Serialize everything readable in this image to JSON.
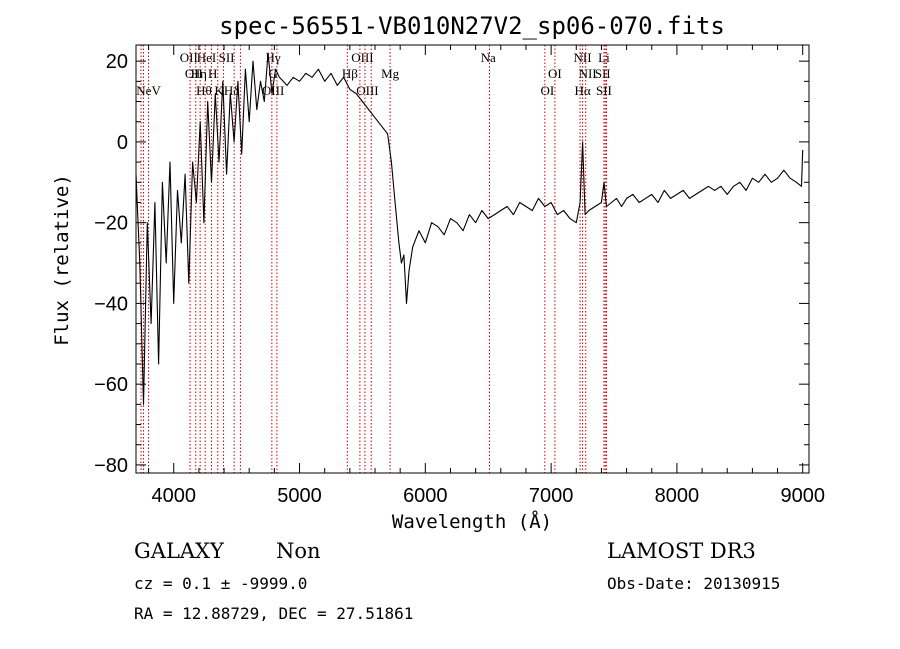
{
  "chart_data": {
    "type": "line",
    "title": "spec-56551-VB010N27V2_sp06-070.fits",
    "xlabel": "Wavelength (Å)",
    "ylabel": "Flux (relative)",
    "xlim": [
      3700,
      9050
    ],
    "ylim": [
      -82,
      24
    ],
    "xticks": [
      4000,
      5000,
      6000,
      7000,
      8000,
      9000
    ],
    "yticks": [
      -80,
      -60,
      -40,
      -20,
      0,
      20
    ],
    "grid": false,
    "line_color": "#000000",
    "marker_color": "#cc0000",
    "series": [
      {
        "x": [
          3700,
          3730,
          3760,
          3790,
          3820,
          3850,
          3880,
          3910,
          3940,
          3970,
          4000,
          4030,
          4060,
          4090,
          4120,
          4150,
          4180,
          4210,
          4240,
          4270,
          4300,
          4330,
          4360,
          4390,
          4420,
          4450,
          4480,
          4510,
          4540,
          4570,
          4600,
          4630,
          4660,
          4690,
          4720,
          4750,
          4780,
          4810,
          4840,
          4870,
          4900,
          4950,
          5000,
          5050,
          5100,
          5150,
          5200,
          5250,
          5300,
          5350,
          5400,
          5450,
          5500,
          5550,
          5600,
          5650,
          5700,
          5730,
          5760,
          5790,
          5810,
          5830,
          5850,
          5870,
          5900,
          5950,
          6000,
          6050,
          6100,
          6150,
          6200,
          6250,
          6300,
          6350,
          6400,
          6450,
          6500,
          6550,
          6600,
          6650,
          6700,
          6750,
          6800,
          6850,
          6900,
          6950,
          7000,
          7050,
          7100,
          7150,
          7200,
          7230,
          7250,
          7270,
          7300,
          7350,
          7400,
          7420,
          7440,
          7480,
          7520,
          7560,
          7600,
          7650,
          7700,
          7750,
          7800,
          7850,
          7900,
          7950,
          8000,
          8050,
          8100,
          8150,
          8200,
          8250,
          8300,
          8350,
          8400,
          8450,
          8500,
          8550,
          8600,
          8650,
          8700,
          8750,
          8800,
          8850,
          8900,
          8950,
          8990,
          9000
        ],
        "y": [
          -8,
          -30,
          -65,
          -20,
          -45,
          -15,
          -55,
          -10,
          -30,
          -5,
          -40,
          -12,
          -25,
          -8,
          -35,
          -5,
          -15,
          5,
          -20,
          10,
          -10,
          12,
          -5,
          15,
          -8,
          12,
          0,
          15,
          -3,
          18,
          5,
          20,
          8,
          15,
          10,
          22,
          12,
          18,
          16,
          15,
          14,
          16,
          15,
          17,
          16,
          18,
          15,
          17,
          14,
          16,
          13,
          12,
          10,
          8,
          6,
          4,
          2,
          -5,
          -15,
          -25,
          -30,
          -28,
          -40,
          -32,
          -26,
          -22,
          -25,
          -20,
          -21,
          -23,
          -19,
          -20,
          -22,
          -18,
          -20,
          -17,
          -19,
          -18,
          -17,
          -16,
          -18,
          -15,
          -16,
          -17,
          -14,
          -16,
          -15,
          -18,
          -17,
          -19,
          -20,
          -15,
          0,
          -18,
          -17,
          -16,
          -15,
          -10,
          -16,
          -15,
          -14,
          -16,
          -14,
          -13,
          -15,
          -14,
          -13,
          -15,
          -12,
          -14,
          -13,
          -12,
          -14,
          -13,
          -12,
          -11,
          -12,
          -11,
          -13,
          -11,
          -10,
          -12,
          -9,
          -10,
          -8,
          -10,
          -9,
          -7,
          -9,
          -10,
          -11,
          -2
        ]
      }
    ],
    "line_markers": [
      {
        "label": "NeV",
        "x": 3800,
        "row": 3
      },
      {
        "label": "OII",
        "x": 4120,
        "row": 1
      },
      {
        "label": "OII",
        "x": 4160,
        "row": 2
      },
      {
        "label": "Hη",
        "x": 4200,
        "row": 2
      },
      {
        "label": "Hθ",
        "x": 4240,
        "row": 3
      },
      {
        "label": "HeI",
        "x": 4260,
        "row": 1
      },
      {
        "label": "H",
        "x": 4310,
        "row": 2
      },
      {
        "label": "K",
        "x": 4360,
        "row": 3
      },
      {
        "label": "SII",
        "x": 4420,
        "row": 1
      },
      {
        "label": "Hδ",
        "x": 4460,
        "row": 3
      },
      {
        "label": "Hγ",
        "x": 4790,
        "row": 1
      },
      {
        "label": "G",
        "x": 4790,
        "row": 2
      },
      {
        "label": "OIII",
        "x": 4790,
        "row": 3
      },
      {
        "label": "OIII",
        "x": 5500,
        "row": 1
      },
      {
        "label": "Hβ",
        "x": 5400,
        "row": 2
      },
      {
        "label": "OIII",
        "x": 5540,
        "row": 3
      },
      {
        "label": "Mg",
        "x": 5720,
        "row": 2
      },
      {
        "label": "Na",
        "x": 6500,
        "row": 1
      },
      {
        "label": "OI",
        "x": 7030,
        "row": 2
      },
      {
        "label": "OI",
        "x": 6970,
        "row": 3
      },
      {
        "label": "NII",
        "x": 7250,
        "row": 1
      },
      {
        "label": "Li",
        "x": 7420,
        "row": 1
      },
      {
        "label": "NII",
        "x": 7290,
        "row": 2
      },
      {
        "label": "SII",
        "x": 7410,
        "row": 2
      },
      {
        "label": "Hα",
        "x": 7250,
        "row": 3
      },
      {
        "label": "SII",
        "x": 7420,
        "row": 3
      }
    ],
    "marker_lines_x": [
      3740,
      3760,
      3800,
      4130,
      4175,
      4210,
      4250,
      4300,
      4350,
      4395,
      4480,
      4530,
      4780,
      4820,
      5380,
      5480,
      5520,
      5570,
      5720,
      6510,
      6950,
      7030,
      7230,
      7250,
      7275,
      7420,
      7430,
      7440
    ]
  },
  "info": {
    "object_class": "GALAXY",
    "subclass": "Non",
    "cz": "cz = 0.1 ± -9999.0",
    "radec": "RA =  12.88729, DEC =  27.51861",
    "survey": "LAMOST DR3",
    "obs_date": "Obs-Date: 20130915"
  }
}
